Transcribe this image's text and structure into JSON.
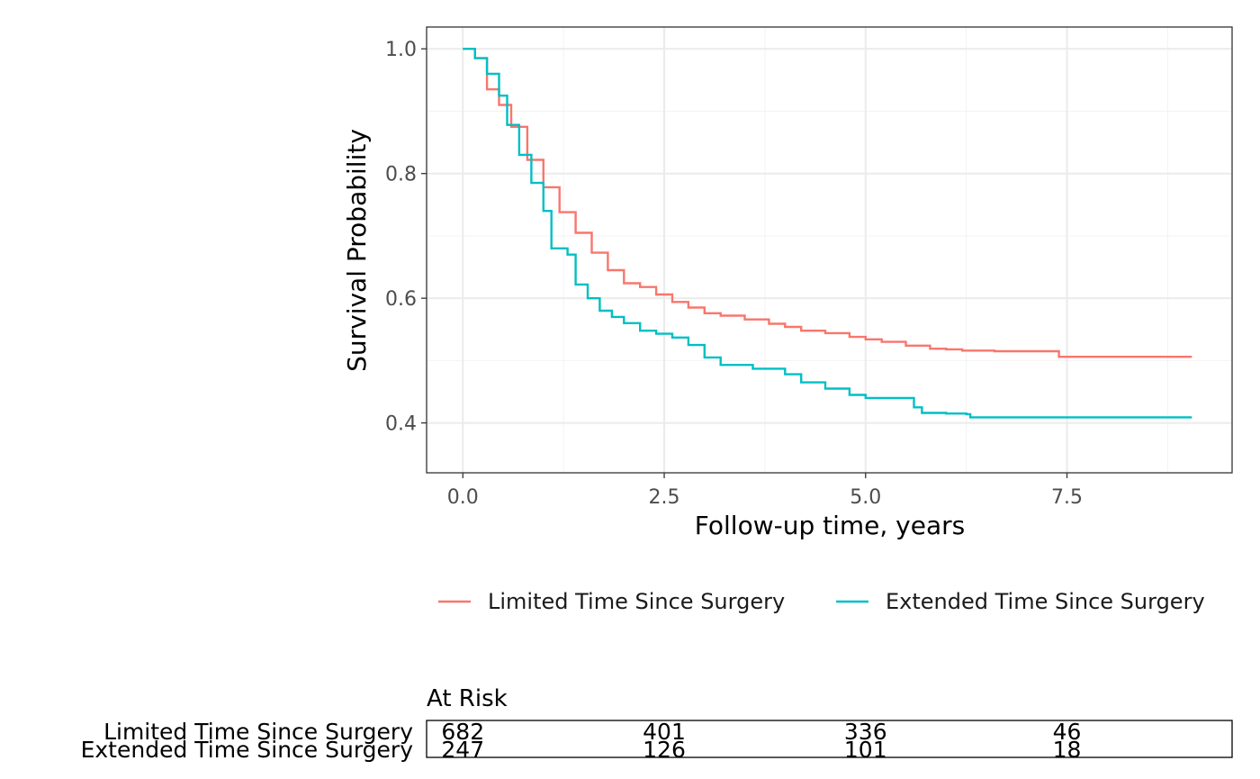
{
  "chart_data": {
    "type": "line",
    "title": "",
    "xlabel": "Follow-up time, years",
    "ylabel": "Survival Probability",
    "xlim": [
      -0.45,
      9.55
    ],
    "ylim": [
      0.32,
      1.035
    ],
    "x_ticks": [
      0.0,
      2.5,
      5.0,
      7.5
    ],
    "x_tick_labels": [
      "0.0",
      "2.5",
      "5.0",
      "7.5"
    ],
    "y_ticks": [
      0.4,
      0.6,
      0.8,
      1.0
    ],
    "y_tick_labels": [
      "0.4",
      "0.6",
      "0.8",
      "1.0"
    ],
    "grid": true,
    "legend_position": "bottom",
    "series": [
      {
        "name": "Limited Time Since Surgery",
        "color": "#F8766D",
        "x": [
          0,
          0.15,
          0.3,
          0.45,
          0.6,
          0.8,
          1.0,
          1.2,
          1.4,
          1.6,
          1.8,
          2.0,
          2.2,
          2.4,
          2.6,
          2.8,
          3.0,
          3.2,
          3.5,
          3.8,
          4.0,
          4.2,
          4.5,
          4.8,
          5.0,
          5.2,
          5.5,
          5.8,
          6.0,
          6.2,
          6.6,
          7.0,
          7.35,
          7.4,
          8.0,
          8.6,
          9.05
        ],
        "y": [
          1.0,
          0.985,
          0.935,
          0.91,
          0.875,
          0.822,
          0.778,
          0.738,
          0.705,
          0.673,
          0.645,
          0.624,
          0.618,
          0.606,
          0.594,
          0.585,
          0.576,
          0.572,
          0.566,
          0.559,
          0.554,
          0.548,
          0.544,
          0.538,
          0.534,
          0.53,
          0.524,
          0.519,
          0.518,
          0.516,
          0.515,
          0.515,
          0.515,
          0.506,
          0.506,
          0.506,
          0.506
        ]
      },
      {
        "name": "Extended Time Since Surgery",
        "color": "#00BFC4",
        "x": [
          0,
          0.15,
          0.3,
          0.45,
          0.55,
          0.7,
          0.85,
          1.0,
          1.1,
          1.3,
          1.4,
          1.55,
          1.7,
          1.85,
          2.0,
          2.2,
          2.4,
          2.6,
          2.8,
          3.0,
          3.2,
          3.6,
          4.0,
          4.2,
          4.5,
          4.8,
          5.0,
          5.5,
          5.6,
          5.7,
          6.0,
          6.25,
          6.3,
          7.0,
          8.0,
          9.05
        ],
        "y": [
          1.0,
          0.985,
          0.96,
          0.925,
          0.878,
          0.83,
          0.785,
          0.74,
          0.68,
          0.67,
          0.622,
          0.6,
          0.58,
          0.57,
          0.56,
          0.548,
          0.543,
          0.537,
          0.525,
          0.505,
          0.493,
          0.487,
          0.478,
          0.465,
          0.455,
          0.445,
          0.44,
          0.44,
          0.425,
          0.416,
          0.415,
          0.414,
          0.409,
          0.409,
          0.409,
          0.409
        ]
      }
    ],
    "at_risk": {
      "title": "At Risk",
      "time_points": [
        0.0,
        2.5,
        5.0,
        7.5
      ],
      "rows": [
        {
          "label": "Limited Time Since Surgery",
          "counts": [
            "682",
            "401",
            "336",
            "46"
          ]
        },
        {
          "label": "Extended Time Since Surgery",
          "counts": [
            "247",
            "126",
            "101",
            "18"
          ]
        }
      ]
    }
  }
}
